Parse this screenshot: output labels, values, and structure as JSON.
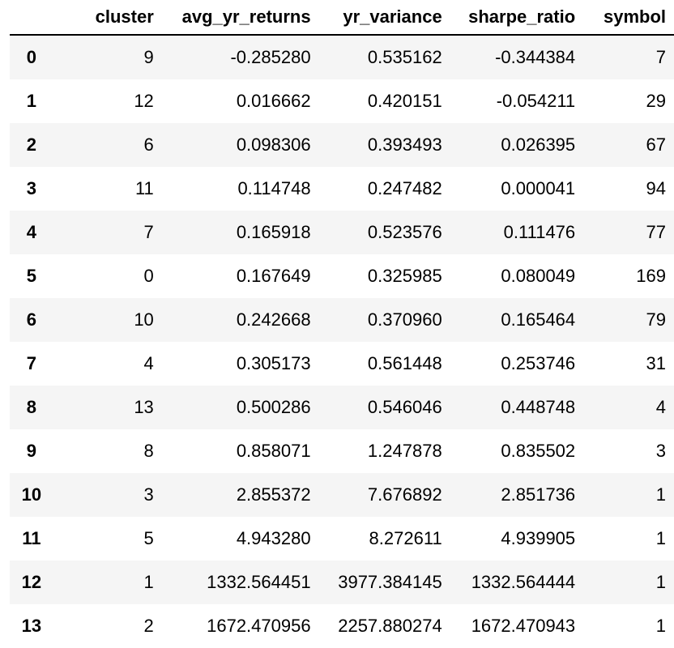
{
  "table": {
    "columns": [
      "cluster",
      "avg_yr_returns",
      "yr_variance",
      "sharpe_ratio",
      "symbol"
    ],
    "rows": [
      {
        "index": "0",
        "cluster": "9",
        "avg_yr_returns": "-0.285280",
        "yr_variance": "0.535162",
        "sharpe_ratio": "-0.344384",
        "symbol": "7"
      },
      {
        "index": "1",
        "cluster": "12",
        "avg_yr_returns": "0.016662",
        "yr_variance": "0.420151",
        "sharpe_ratio": "-0.054211",
        "symbol": "29"
      },
      {
        "index": "2",
        "cluster": "6",
        "avg_yr_returns": "0.098306",
        "yr_variance": "0.393493",
        "sharpe_ratio": "0.026395",
        "symbol": "67"
      },
      {
        "index": "3",
        "cluster": "11",
        "avg_yr_returns": "0.114748",
        "yr_variance": "0.247482",
        "sharpe_ratio": "0.000041",
        "symbol": "94"
      },
      {
        "index": "4",
        "cluster": "7",
        "avg_yr_returns": "0.165918",
        "yr_variance": "0.523576",
        "sharpe_ratio": "0.111476",
        "symbol": "77"
      },
      {
        "index": "5",
        "cluster": "0",
        "avg_yr_returns": "0.167649",
        "yr_variance": "0.325985",
        "sharpe_ratio": "0.080049",
        "symbol": "169"
      },
      {
        "index": "6",
        "cluster": "10",
        "avg_yr_returns": "0.242668",
        "yr_variance": "0.370960",
        "sharpe_ratio": "0.165464",
        "symbol": "79"
      },
      {
        "index": "7",
        "cluster": "4",
        "avg_yr_returns": "0.305173",
        "yr_variance": "0.561448",
        "sharpe_ratio": "0.253746",
        "symbol": "31"
      },
      {
        "index": "8",
        "cluster": "13",
        "avg_yr_returns": "0.500286",
        "yr_variance": "0.546046",
        "sharpe_ratio": "0.448748",
        "symbol": "4"
      },
      {
        "index": "9",
        "cluster": "8",
        "avg_yr_returns": "0.858071",
        "yr_variance": "1.247878",
        "sharpe_ratio": "0.835502",
        "symbol": "3"
      },
      {
        "index": "10",
        "cluster": "3",
        "avg_yr_returns": "2.855372",
        "yr_variance": "7.676892",
        "sharpe_ratio": "2.851736",
        "symbol": "1"
      },
      {
        "index": "11",
        "cluster": "5",
        "avg_yr_returns": "4.943280",
        "yr_variance": "8.272611",
        "sharpe_ratio": "4.939905",
        "symbol": "1"
      },
      {
        "index": "12",
        "cluster": "1",
        "avg_yr_returns": "1332.564451",
        "yr_variance": "3977.384145",
        "sharpe_ratio": "1332.564444",
        "symbol": "1"
      },
      {
        "index": "13",
        "cluster": "2",
        "avg_yr_returns": "1672.470956",
        "yr_variance": "2257.880274",
        "sharpe_ratio": "1672.470943",
        "symbol": "1"
      }
    ]
  },
  "colors": {
    "row_stripe": "#f5f5f5",
    "row_plain": "#ffffff",
    "header_rule": "#000000",
    "text": "#000000"
  }
}
